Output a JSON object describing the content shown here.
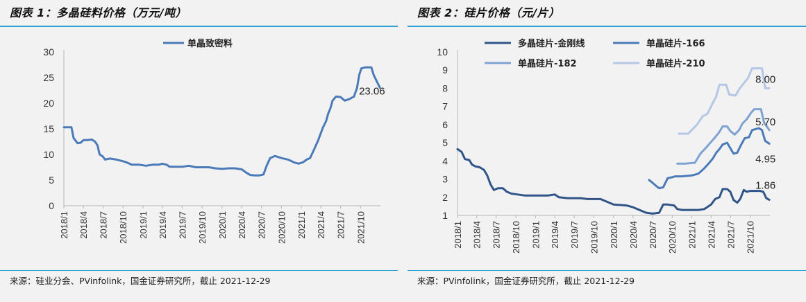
{
  "panels": {
    "left": {
      "title": "图表 1：多晶硅料价格（万元/吨）",
      "source": "来源：硅业分会、PVinfolink，国金证券研究所，截止 2021-12-29"
    },
    "right": {
      "title": "图表 2：硅片价格（元/片）",
      "source": "来源：PVinfolink，国金证券研究所，截止 2021-12-29"
    }
  },
  "chart_data": [
    {
      "type": "line",
      "x_ticks": [
        "2018/1",
        "2018/4",
        "2018/7",
        "2018/10",
        "2019/1",
        "2019/4",
        "2019/7",
        "2019/10",
        "2020/1",
        "2020/4",
        "2020/7",
        "2020/10",
        "2021/1",
        "2021/4",
        "2021/7",
        "2021/10"
      ],
      "ylim": [
        0,
        30
      ],
      "y_ticks": [
        0,
        5,
        10,
        15,
        20,
        25,
        30
      ],
      "grid": false,
      "legend_position": "top-center",
      "series": [
        {
          "name": "单晶致密料",
          "color": "#4a7ab8",
          "points": [
            [
              "2018-01-01",
              15.3
            ],
            [
              "2018-01-20",
              15.3
            ],
            [
              "2018-02-05",
              15.3
            ],
            [
              "2018-02-15",
              13.2
            ],
            [
              "2018-03-05",
              12.2
            ],
            [
              "2018-03-20",
              12.3
            ],
            [
              "2018-04-01",
              12.8
            ],
            [
              "2018-04-20",
              12.8
            ],
            [
              "2018-05-10",
              12.9
            ],
            [
              "2018-05-25",
              12.5
            ],
            [
              "2018-06-05",
              11.8
            ],
            [
              "2018-06-15",
              10.0
            ],
            [
              "2018-06-30",
              9.6
            ],
            [
              "2018-07-10",
              9.0
            ],
            [
              "2018-08-01",
              9.2
            ],
            [
              "2018-09-01",
              9.0
            ],
            [
              "2018-09-20",
              8.8
            ],
            [
              "2018-10-15",
              8.5
            ],
            [
              "2018-11-10",
              8.0
            ],
            [
              "2018-12-15",
              8.0
            ],
            [
              "2019-01-15",
              7.8
            ],
            [
              "2019-02-15",
              8.0
            ],
            [
              "2019-03-15",
              8.0
            ],
            [
              "2019-04-01",
              8.2
            ],
            [
              "2019-04-20",
              8.0
            ],
            [
              "2019-05-05",
              7.6
            ],
            [
              "2019-06-01",
              7.6
            ],
            [
              "2019-07-01",
              7.6
            ],
            [
              "2019-08-01",
              7.8
            ],
            [
              "2019-09-01",
              7.5
            ],
            [
              "2019-10-01",
              7.5
            ],
            [
              "2019-11-01",
              7.5
            ],
            [
              "2019-12-01",
              7.3
            ],
            [
              "2020-01-01",
              7.2
            ],
            [
              "2020-02-01",
              7.3
            ],
            [
              "2020-03-01",
              7.3
            ],
            [
              "2020-04-01",
              7.1
            ],
            [
              "2020-04-20",
              6.5
            ],
            [
              "2020-05-10",
              6.0
            ],
            [
              "2020-06-01",
              5.9
            ],
            [
              "2020-06-20",
              5.9
            ],
            [
              "2020-07-10",
              6.1
            ],
            [
              "2020-07-25",
              7.8
            ],
            [
              "2020-08-10",
              9.3
            ],
            [
              "2020-09-01",
              9.7
            ],
            [
              "2020-10-01",
              9.3
            ],
            [
              "2020-11-01",
              9.0
            ],
            [
              "2020-12-01",
              8.4
            ],
            [
              "2020-12-20",
              8.2
            ],
            [
              "2021-01-10",
              8.5
            ],
            [
              "2021-01-25",
              9.0
            ],
            [
              "2021-02-10",
              9.3
            ],
            [
              "2021-03-01",
              11.0
            ],
            [
              "2021-03-20",
              12.8
            ],
            [
              "2021-04-10",
              15.2
            ],
            [
              "2021-04-25",
              16.5
            ],
            [
              "2021-05-05",
              18.0
            ],
            [
              "2021-05-15",
              19.0
            ],
            [
              "2021-05-25",
              20.5
            ],
            [
              "2021-06-10",
              21.3
            ],
            [
              "2021-07-01",
              21.2
            ],
            [
              "2021-07-20",
              20.5
            ],
            [
              "2021-08-10",
              20.8
            ],
            [
              "2021-09-01",
              21.3
            ],
            [
              "2021-09-15",
              23.0
            ],
            [
              "2021-09-25",
              25.5
            ],
            [
              "2021-10-05",
              26.8
            ],
            [
              "2021-10-25",
              27.0
            ],
            [
              "2021-11-20",
              27.0
            ],
            [
              "2021-12-01",
              25.5
            ],
            [
              "2021-12-29",
              23.06
            ]
          ]
        }
      ],
      "annotations": [
        {
          "x": "2021-12-29",
          "y": 23.06,
          "text": "23.06"
        }
      ]
    },
    {
      "type": "line",
      "x_ticks": [
        "2018/1",
        "2018/4",
        "2018/7",
        "2018/10",
        "2019/1",
        "2019/4",
        "2019/7",
        "2019/10",
        "2020/1",
        "2020/4",
        "2020/7",
        "2020/10",
        "2021/1",
        "2021/4",
        "2021/7",
        "2021/10"
      ],
      "ylim": [
        1,
        10
      ],
      "y_ticks": [
        1,
        2,
        3,
        4,
        5,
        6,
        7,
        8,
        9,
        10
      ],
      "grid": false,
      "legend_position": "top",
      "series": [
        {
          "name": "多晶硅片-金刚线",
          "color": "#2f5487",
          "points": [
            [
              "2018-01-01",
              4.65
            ],
            [
              "2018-01-20",
              4.5
            ],
            [
              "2018-02-05",
              4.1
            ],
            [
              "2018-02-25",
              4.05
            ],
            [
              "2018-03-10",
              3.8
            ],
            [
              "2018-03-25",
              3.7
            ],
            [
              "2018-04-15",
              3.65
            ],
            [
              "2018-05-05",
              3.5
            ],
            [
              "2018-05-20",
              3.2
            ],
            [
              "2018-06-05",
              2.7
            ],
            [
              "2018-06-20",
              2.4
            ],
            [
              "2018-07-10",
              2.5
            ],
            [
              "2018-08-01",
              2.5
            ],
            [
              "2018-08-20",
              2.3
            ],
            [
              "2018-09-10",
              2.2
            ],
            [
              "2018-10-10",
              2.15
            ],
            [
              "2018-11-10",
              2.1
            ],
            [
              "2019-01-01",
              2.1
            ],
            [
              "2019-03-01",
              2.1
            ],
            [
              "2019-04-01",
              2.15
            ],
            [
              "2019-04-20",
              2.0
            ],
            [
              "2019-06-01",
              1.95
            ],
            [
              "2019-08-01",
              1.95
            ],
            [
              "2019-09-01",
              1.9
            ],
            [
              "2019-11-01",
              1.9
            ],
            [
              "2019-12-01",
              1.75
            ],
            [
              "2020-01-01",
              1.6
            ],
            [
              "2020-03-01",
              1.55
            ],
            [
              "2020-04-01",
              1.45
            ],
            [
              "2020-05-01",
              1.3
            ],
            [
              "2020-06-01",
              1.15
            ],
            [
              "2020-07-01",
              1.1
            ],
            [
              "2020-08-01",
              1.15
            ],
            [
              "2020-08-20",
              1.6
            ],
            [
              "2020-09-10",
              1.6
            ],
            [
              "2020-10-10",
              1.55
            ],
            [
              "2020-10-25",
              1.35
            ],
            [
              "2020-11-15",
              1.3
            ],
            [
              "2021-01-01",
              1.3
            ],
            [
              "2021-02-01",
              1.3
            ],
            [
              "2021-03-01",
              1.35
            ],
            [
              "2021-04-01",
              1.6
            ],
            [
              "2021-04-20",
              1.9
            ],
            [
              "2021-05-10",
              2.0
            ],
            [
              "2021-05-25",
              2.45
            ],
            [
              "2021-06-15",
              2.45
            ],
            [
              "2021-06-30",
              2.3
            ],
            [
              "2021-07-15",
              1.85
            ],
            [
              "2021-08-01",
              1.7
            ],
            [
              "2021-08-15",
              1.9
            ],
            [
              "2021-09-01",
              2.4
            ],
            [
              "2021-09-15",
              2.3
            ],
            [
              "2021-10-01",
              2.35
            ],
            [
              "2021-11-15",
              2.35
            ],
            [
              "2021-12-01",
              2.3
            ],
            [
              "2021-12-15",
              1.95
            ],
            [
              "2021-12-29",
              1.86
            ]
          ]
        },
        {
          "name": "单晶硅片-166",
          "color": "#4a7ab8",
          "points": [
            [
              "2020-06-15",
              2.95
            ],
            [
              "2020-07-01",
              2.8
            ],
            [
              "2020-07-15",
              2.65
            ],
            [
              "2020-08-01",
              2.5
            ],
            [
              "2020-08-20",
              2.55
            ],
            [
              "2020-09-10",
              3.05
            ],
            [
              "2020-10-01",
              3.1
            ],
            [
              "2020-10-15",
              3.15
            ],
            [
              "2020-11-15",
              3.15
            ],
            [
              "2021-01-01",
              3.2
            ],
            [
              "2021-02-01",
              3.3
            ],
            [
              "2021-03-01",
              3.6
            ],
            [
              "2021-03-20",
              3.85
            ],
            [
              "2021-04-10",
              4.15
            ],
            [
              "2021-04-25",
              4.45
            ],
            [
              "2021-05-10",
              4.65
            ],
            [
              "2021-05-25",
              4.9
            ],
            [
              "2021-06-15",
              5.0
            ],
            [
              "2021-06-30",
              4.7
            ],
            [
              "2021-07-15",
              4.4
            ],
            [
              "2021-08-01",
              4.45
            ],
            [
              "2021-08-20",
              4.9
            ],
            [
              "2021-09-05",
              5.25
            ],
            [
              "2021-09-25",
              5.3
            ],
            [
              "2021-10-10",
              5.7
            ],
            [
              "2021-11-10",
              5.8
            ],
            [
              "2021-11-25",
              5.7
            ],
            [
              "2021-12-10",
              5.1
            ],
            [
              "2021-12-29",
              4.95
            ]
          ]
        },
        {
          "name": "单晶硅片-182",
          "color": "#7ea2d2",
          "points": [
            [
              "2020-10-25",
              3.85
            ],
            [
              "2020-12-01",
              3.85
            ],
            [
              "2021-01-15",
              3.9
            ],
            [
              "2021-02-10",
              4.4
            ],
            [
              "2021-03-10",
              4.75
            ],
            [
              "2021-04-01",
              5.05
            ],
            [
              "2021-04-20",
              5.3
            ],
            [
              "2021-05-10",
              5.6
            ],
            [
              "2021-05-25",
              5.9
            ],
            [
              "2021-06-15",
              5.9
            ],
            [
              "2021-06-30",
              5.65
            ],
            [
              "2021-07-20",
              5.45
            ],
            [
              "2021-08-10",
              5.7
            ],
            [
              "2021-08-25",
              6.05
            ],
            [
              "2021-09-15",
              6.3
            ],
            [
              "2021-10-05",
              6.65
            ],
            [
              "2021-10-20",
              6.85
            ],
            [
              "2021-11-20",
              6.85
            ],
            [
              "2021-12-05",
              6.1
            ],
            [
              "2021-12-29",
              5.7
            ]
          ]
        },
        {
          "name": "单晶硅片-210",
          "color": "#b4c8e6",
          "points": [
            [
              "2020-11-01",
              5.5
            ],
            [
              "2020-12-15",
              5.5
            ],
            [
              "2021-01-25",
              6.0
            ],
            [
              "2021-02-20",
              6.45
            ],
            [
              "2021-03-15",
              6.6
            ],
            [
              "2021-04-05",
              7.1
            ],
            [
              "2021-04-25",
              7.55
            ],
            [
              "2021-05-10",
              8.2
            ],
            [
              "2021-06-10",
              8.2
            ],
            [
              "2021-06-25",
              7.65
            ],
            [
              "2021-07-25",
              7.6
            ],
            [
              "2021-08-10",
              7.95
            ],
            [
              "2021-08-30",
              8.25
            ],
            [
              "2021-09-20",
              8.55
            ],
            [
              "2021-10-10",
              9.1
            ],
            [
              "2021-11-25",
              9.1
            ],
            [
              "2021-12-10",
              8.0
            ],
            [
              "2021-12-29",
              8.0
            ]
          ]
        }
      ],
      "annotations": [
        {
          "x": "2021-12-29",
          "y": 8.0,
          "text": "8.00",
          "series": "单晶硅片-210"
        },
        {
          "x": "2021-12-29",
          "y": 5.7,
          "text": "5.70",
          "series": "单晶硅片-182"
        },
        {
          "x": "2021-12-29",
          "y": 4.95,
          "text": "4.95",
          "series": "单晶硅片-166"
        },
        {
          "x": "2021-12-29",
          "y": 1.86,
          "text": "1.86",
          "series": "多晶硅片-金刚线"
        }
      ]
    }
  ]
}
